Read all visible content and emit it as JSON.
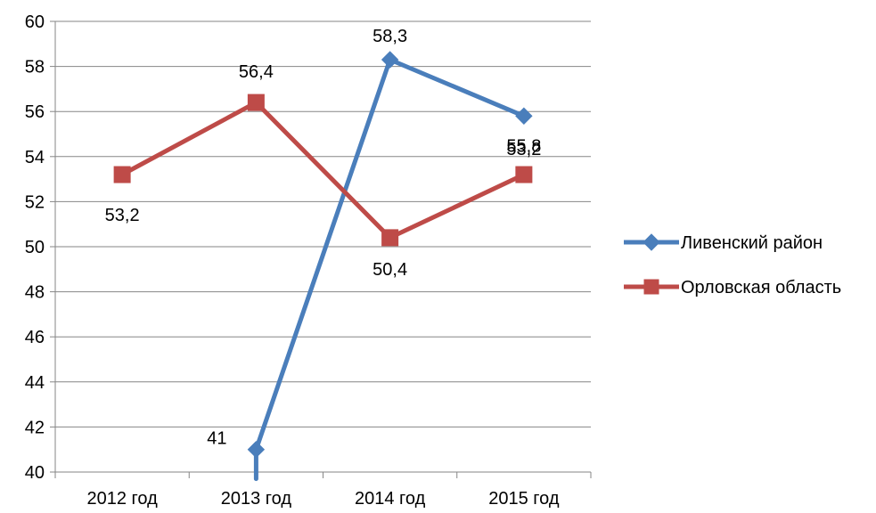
{
  "chart_data": {
    "type": "line",
    "title": "",
    "xlabel": "",
    "ylabel": "",
    "categories": [
      "2012 год",
      "2013 год",
      "2014 год",
      "2015 год"
    ],
    "ylim": [
      40,
      60
    ],
    "yticks": [
      40,
      42,
      44,
      46,
      48,
      50,
      52,
      54,
      56,
      58,
      60
    ],
    "ytick_labels": [
      "40",
      "42",
      "44",
      "46",
      "48",
      "50",
      "52",
      "54",
      "56",
      "58",
      "60"
    ],
    "grid": "horizontal",
    "legend_position": "right",
    "series": [
      {
        "name": "Ливенский район",
        "color": "#4A7EBB",
        "marker": "diamond",
        "values": [
          null,
          41,
          58.3,
          55.8
        ],
        "line_start_value": 39.7,
        "labels": [
          "",
          "41",
          "58,3",
          "55,8"
        ]
      },
      {
        "name": "Орловская область",
        "color": "#BE4B48",
        "marker": "square",
        "values": [
          53.2,
          56.4,
          50.4,
          53.2
        ],
        "labels": [
          "53,2",
          "56,4",
          "50,4",
          "53,2"
        ]
      }
    ]
  }
}
